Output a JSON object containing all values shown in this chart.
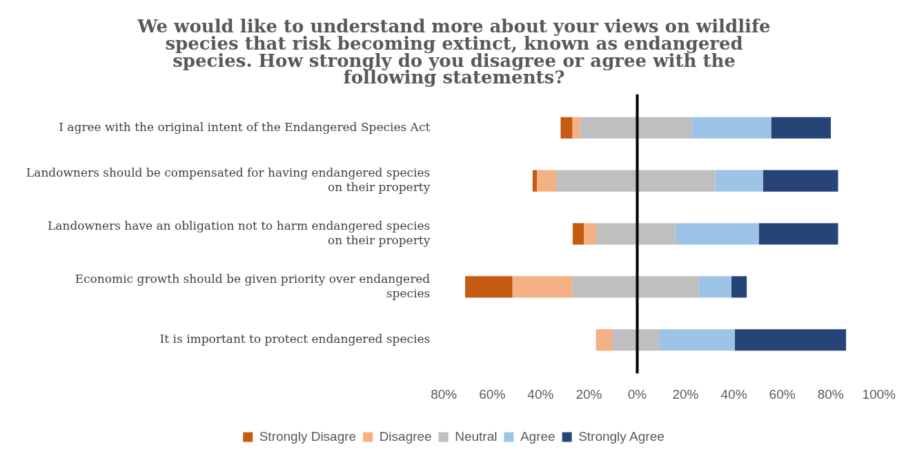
{
  "chart_data": {
    "type": "bar",
    "orientation": "horizontal",
    "stacked": true,
    "title": "We would like to understand more about your views on wildlife species that risk becoming extinct, known as endangered species. How strongly do you disagree or agree with the following statements?",
    "categories": [
      "I agree with the original intent of the Endangered Species Act",
      "Landowners should be compensated for having endangered species on their property",
      "Landowners have an obligation not to harm endangered species on their property",
      "Economic growth should be given priority over endangered species",
      "It is important to protect endangered species"
    ],
    "series": [
      {
        "color": "#bfbfbf",
        "values": [
          -23.6,
          -33.5,
          -17.0,
          -26.9,
          -10.4
        ]
      },
      {
        "name": "Disagree",
        "color": "#f4b183",
        "values": [
          -3.2,
          -8.0,
          -5.0,
          -24.7,
          -6.7
        ]
      },
      {
        "name": "Strongly Disagre",
        "color": "#c55a11",
        "values": [
          -4.9,
          -1.8,
          -4.7,
          -19.6,
          0
        ]
      },
      {
        "name": "Neutral",
        "color": "#bfbfbf",
        "values": [
          22.5,
          32.3,
          15.8,
          25.5,
          9.3
        ]
      },
      {
        "name": "Agree",
        "color": "#9dc3e6",
        "values": [
          32.9,
          19.7,
          34.5,
          13.4,
          31.1
        ]
      },
      {
        "name": "Strongly Agree",
        "color": "#264478",
        "values": [
          24.7,
          31.1,
          32.8,
          6.4,
          46.0
        ]
      }
    ],
    "xlim": [
      -80,
      100
    ],
    "xticks": [
      {
        "value": -80,
        "label": "80%"
      },
      {
        "value": -60,
        "label": "60%"
      },
      {
        "value": -40,
        "label": "40%"
      },
      {
        "value": -20,
        "label": "20%"
      },
      {
        "value": 0,
        "label": "0%"
      },
      {
        "value": 20,
        "label": "20%"
      },
      {
        "value": 40,
        "label": "40%"
      },
      {
        "value": 60,
        "label": "60%"
      },
      {
        "value": 80,
        "label": "80%"
      },
      {
        "value": 100,
        "label": "100%"
      }
    ],
    "ref_lines": [
      {
        "axis": "x",
        "value": 0,
        "color": "#000000"
      }
    ],
    "grid": false,
    "legend": "bottom"
  }
}
